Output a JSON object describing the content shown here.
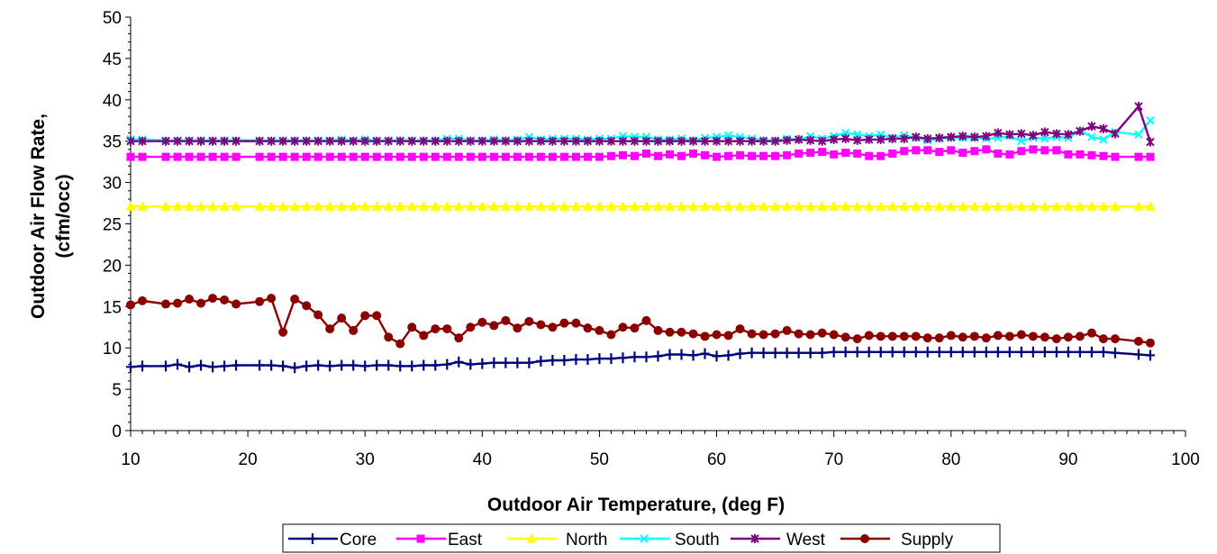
{
  "chart_data": {
    "type": "line",
    "title": "",
    "xlabel": "Outdoor Air Temperature, (deg F)",
    "ylabel_line1": "Outdoor Air Flow Rate,",
    "ylabel_line2": "(cfm/occ)",
    "xlim": [
      10,
      100
    ],
    "ylim": [
      0,
      50
    ],
    "xticks": [
      10,
      20,
      30,
      40,
      50,
      60,
      70,
      80,
      90,
      100
    ],
    "yticks": [
      0,
      5,
      10,
      15,
      20,
      25,
      30,
      35,
      40,
      45,
      50
    ],
    "grid": false,
    "legend_position": "bottom",
    "series": [
      {
        "name": "Core",
        "color": "#000080",
        "marker": "plus",
        "x": [
          10,
          11,
          13,
          14,
          15,
          16,
          17,
          18,
          19,
          21,
          22,
          23,
          24,
          25,
          26,
          27,
          28,
          29,
          30,
          31,
          32,
          33,
          34,
          35,
          36,
          37,
          38,
          39,
          40,
          41,
          42,
          43,
          44,
          45,
          46,
          47,
          48,
          49,
          50,
          51,
          52,
          53,
          54,
          55,
          56,
          57,
          58,
          59,
          60,
          61,
          62,
          63,
          64,
          65,
          66,
          67,
          68,
          69,
          70,
          71,
          72,
          73,
          74,
          75,
          76,
          77,
          78,
          79,
          80,
          81,
          82,
          83,
          84,
          85,
          86,
          87,
          88,
          89,
          90,
          91,
          92,
          93,
          94,
          96,
          97
        ],
        "y": [
          7.7,
          7.8,
          7.8,
          8.0,
          7.7,
          7.9,
          7.7,
          7.8,
          7.9,
          7.9,
          7.9,
          7.8,
          7.6,
          7.8,
          7.9,
          7.8,
          7.9,
          7.9,
          7.8,
          7.9,
          7.9,
          7.8,
          7.8,
          7.9,
          7.9,
          8.0,
          8.3,
          8.0,
          8.1,
          8.2,
          8.2,
          8.2,
          8.2,
          8.4,
          8.5,
          8.5,
          8.6,
          8.6,
          8.7,
          8.7,
          8.8,
          8.9,
          8.9,
          9.0,
          9.2,
          9.2,
          9.1,
          9.3,
          9.0,
          9.1,
          9.3,
          9.4,
          9.4,
          9.4,
          9.4,
          9.4,
          9.4,
          9.4,
          9.5,
          9.5,
          9.5,
          9.5,
          9.5,
          9.5,
          9.5,
          9.5,
          9.5,
          9.5,
          9.5,
          9.5,
          9.5,
          9.5,
          9.5,
          9.5,
          9.5,
          9.5,
          9.5,
          9.5,
          9.5,
          9.5,
          9.5,
          9.5,
          9.4,
          9.2,
          9.1
        ]
      },
      {
        "name": "East",
        "color": "#FF00FF",
        "marker": "square",
        "x": [
          10,
          11,
          13,
          14,
          15,
          16,
          17,
          18,
          19,
          21,
          22,
          23,
          24,
          25,
          26,
          27,
          28,
          29,
          30,
          31,
          32,
          33,
          34,
          35,
          36,
          37,
          38,
          39,
          40,
          41,
          42,
          43,
          44,
          45,
          46,
          47,
          48,
          49,
          50,
          51,
          52,
          53,
          54,
          55,
          56,
          57,
          58,
          59,
          60,
          61,
          62,
          63,
          64,
          65,
          66,
          67,
          68,
          69,
          70,
          71,
          72,
          73,
          74,
          75,
          76,
          77,
          78,
          79,
          80,
          81,
          82,
          83,
          84,
          85,
          86,
          87,
          88,
          89,
          90,
          91,
          92,
          93,
          94,
          96,
          97
        ],
        "y": [
          33.1,
          33.1,
          33.1,
          33.1,
          33.1,
          33.1,
          33.1,
          33.1,
          33.1,
          33.1,
          33.1,
          33.1,
          33.1,
          33.1,
          33.1,
          33.1,
          33.1,
          33.1,
          33.1,
          33.1,
          33.1,
          33.1,
          33.1,
          33.1,
          33.1,
          33.1,
          33.1,
          33.1,
          33.1,
          33.1,
          33.1,
          33.1,
          33.1,
          33.1,
          33.1,
          33.1,
          33.1,
          33.1,
          33.1,
          33.2,
          33.3,
          33.2,
          33.5,
          33.2,
          33.4,
          33.2,
          33.5,
          33.3,
          33.1,
          33.2,
          33.3,
          33.2,
          33.2,
          33.2,
          33.3,
          33.5,
          33.6,
          33.7,
          33.4,
          33.6,
          33.5,
          33.2,
          33.2,
          33.5,
          33.8,
          33.9,
          33.9,
          33.7,
          33.9,
          33.6,
          33.8,
          34.0,
          33.5,
          33.4,
          33.8,
          34.0,
          33.9,
          33.9,
          33.4,
          33.4,
          33.3,
          33.2,
          33.1,
          33.1,
          33.1
        ]
      },
      {
        "name": "North",
        "color": "#FFFF00",
        "marker": "triangle",
        "x": [
          10,
          11,
          13,
          14,
          15,
          16,
          17,
          18,
          19,
          21,
          22,
          23,
          24,
          25,
          26,
          27,
          28,
          29,
          30,
          31,
          32,
          33,
          34,
          35,
          36,
          37,
          38,
          39,
          40,
          41,
          42,
          43,
          44,
          45,
          46,
          47,
          48,
          49,
          50,
          51,
          52,
          53,
          54,
          55,
          56,
          57,
          58,
          59,
          60,
          61,
          62,
          63,
          64,
          65,
          66,
          67,
          68,
          69,
          70,
          71,
          72,
          73,
          74,
          75,
          76,
          77,
          78,
          79,
          80,
          81,
          82,
          83,
          84,
          85,
          86,
          87,
          88,
          89,
          90,
          91,
          92,
          93,
          94,
          96,
          97
        ],
        "y": [
          27.1,
          27.1,
          27.1,
          27.1,
          27.1,
          27.1,
          27.1,
          27.1,
          27.1,
          27.1,
          27.1,
          27.1,
          27.1,
          27.1,
          27.1,
          27.1,
          27.1,
          27.1,
          27.1,
          27.1,
          27.1,
          27.1,
          27.1,
          27.1,
          27.1,
          27.1,
          27.1,
          27.1,
          27.1,
          27.1,
          27.1,
          27.1,
          27.1,
          27.1,
          27.1,
          27.1,
          27.1,
          27.1,
          27.1,
          27.1,
          27.1,
          27.1,
          27.1,
          27.1,
          27.1,
          27.1,
          27.1,
          27.1,
          27.1,
          27.1,
          27.1,
          27.1,
          27.1,
          27.1,
          27.1,
          27.1,
          27.1,
          27.1,
          27.1,
          27.1,
          27.1,
          27.1,
          27.1,
          27.1,
          27.1,
          27.1,
          27.1,
          27.1,
          27.1,
          27.1,
          27.1,
          27.1,
          27.1,
          27.1,
          27.1,
          27.1,
          27.1,
          27.1,
          27.1,
          27.1,
          27.1,
          27.1,
          27.1,
          27.1,
          27.1
        ]
      },
      {
        "name": "South",
        "color": "#00FFFF",
        "marker": "x",
        "x": [
          10,
          11,
          13,
          14,
          15,
          16,
          17,
          18,
          19,
          21,
          22,
          23,
          24,
          25,
          26,
          27,
          28,
          29,
          30,
          31,
          32,
          33,
          34,
          35,
          36,
          37,
          38,
          39,
          40,
          41,
          42,
          43,
          44,
          45,
          46,
          47,
          48,
          49,
          50,
          51,
          52,
          53,
          54,
          55,
          56,
          57,
          58,
          59,
          60,
          61,
          62,
          63,
          64,
          65,
          66,
          67,
          68,
          69,
          70,
          71,
          72,
          73,
          74,
          75,
          76,
          77,
          78,
          79,
          80,
          81,
          82,
          83,
          84,
          85,
          86,
          87,
          88,
          89,
          90,
          91,
          92,
          93,
          94,
          96,
          97
        ],
        "y": [
          35.2,
          35.2,
          35.1,
          35.1,
          35.1,
          35.1,
          35.1,
          35.1,
          35.1,
          35.1,
          35.1,
          35.1,
          35.1,
          35.1,
          35.1,
          35.1,
          35.2,
          35.1,
          35.2,
          35.1,
          35.1,
          35.1,
          35.1,
          35.1,
          35.1,
          35.3,
          35.3,
          35.1,
          35.1,
          35.2,
          35.1,
          35.2,
          35.5,
          35.2,
          35.3,
          35.3,
          35.3,
          35.2,
          35.3,
          35.3,
          35.6,
          35.5,
          35.5,
          35.2,
          35.2,
          35.3,
          35.1,
          35.4,
          35.5,
          35.7,
          35.5,
          35.3,
          35.1,
          35.1,
          35.3,
          35.2,
          35.6,
          35.3,
          35.6,
          36.0,
          35.8,
          35.6,
          35.8,
          35.4,
          35.7,
          35.4,
          35.1,
          35.3,
          35.4,
          35.4,
          35.4,
          35.3,
          35.4,
          35.6,
          35.0,
          35.4,
          35.3,
          35.5,
          35.4,
          36.3,
          35.5,
          35.2,
          36.1,
          35.8,
          37.5
        ]
      },
      {
        "name": "West",
        "color": "#800080",
        "marker": "star",
        "x": [
          10,
          11,
          13,
          14,
          15,
          16,
          17,
          18,
          19,
          21,
          22,
          23,
          24,
          25,
          26,
          27,
          28,
          29,
          30,
          31,
          32,
          33,
          34,
          35,
          36,
          37,
          38,
          39,
          40,
          41,
          42,
          43,
          44,
          45,
          46,
          47,
          48,
          49,
          50,
          51,
          52,
          53,
          54,
          55,
          56,
          57,
          58,
          59,
          60,
          61,
          62,
          63,
          64,
          65,
          66,
          67,
          68,
          69,
          70,
          71,
          72,
          73,
          74,
          75,
          76,
          77,
          78,
          79,
          80,
          81,
          82,
          83,
          84,
          85,
          86,
          87,
          88,
          89,
          90,
          91,
          92,
          93,
          94,
          96,
          97
        ],
        "y": [
          35.0,
          35.0,
          35.0,
          35.0,
          35.0,
          35.0,
          35.0,
          35.0,
          35.0,
          35.0,
          35.0,
          35.0,
          35.0,
          35.0,
          35.0,
          35.0,
          35.0,
          35.0,
          35.0,
          35.0,
          35.0,
          35.0,
          35.0,
          35.0,
          35.0,
          35.0,
          35.0,
          35.0,
          35.0,
          35.0,
          35.0,
          35.0,
          35.0,
          35.0,
          35.0,
          35.0,
          35.0,
          35.0,
          35.0,
          35.0,
          35.0,
          35.0,
          35.0,
          35.0,
          35.0,
          35.0,
          35.0,
          35.0,
          35.0,
          35.0,
          35.0,
          35.0,
          35.0,
          35.0,
          35.1,
          35.2,
          35.1,
          35.0,
          35.2,
          35.3,
          35.1,
          35.2,
          35.2,
          35.3,
          35.3,
          35.5,
          35.3,
          35.4,
          35.5,
          35.6,
          35.5,
          35.6,
          36.0,
          35.8,
          35.9,
          35.7,
          36.1,
          35.9,
          35.8,
          36.2,
          36.8,
          36.5,
          35.9,
          39.2,
          34.9
        ]
      },
      {
        "name": "Supply",
        "color": "#8B0000",
        "marker": "circle",
        "x": [
          10,
          11,
          13,
          14,
          15,
          16,
          17,
          18,
          19,
          21,
          22,
          23,
          24,
          25,
          26,
          27,
          28,
          29,
          30,
          31,
          32,
          33,
          34,
          35,
          36,
          37,
          38,
          39,
          40,
          41,
          42,
          43,
          44,
          45,
          46,
          47,
          48,
          49,
          50,
          51,
          52,
          53,
          54,
          55,
          56,
          57,
          58,
          59,
          60,
          61,
          62,
          63,
          64,
          65,
          66,
          67,
          68,
          69,
          70,
          71,
          72,
          73,
          74,
          75,
          76,
          77,
          78,
          79,
          80,
          81,
          82,
          83,
          84,
          85,
          86,
          87,
          88,
          89,
          90,
          91,
          92,
          93,
          94,
          96,
          97
        ],
        "y": [
          15.2,
          15.7,
          15.3,
          15.4,
          15.9,
          15.4,
          16.0,
          15.8,
          15.3,
          15.6,
          16.0,
          11.9,
          15.9,
          15.1,
          14.0,
          12.3,
          13.6,
          12.1,
          13.9,
          13.9,
          11.3,
          10.5,
          12.5,
          11.5,
          12.3,
          12.3,
          11.2,
          12.5,
          13.1,
          12.7,
          13.3,
          12.4,
          13.2,
          12.8,
          12.5,
          13.0,
          13.0,
          12.4,
          12.1,
          11.6,
          12.5,
          12.4,
          13.3,
          12.1,
          11.9,
          11.9,
          11.7,
          11.4,
          11.6,
          11.5,
          12.3,
          11.7,
          11.6,
          11.7,
          12.1,
          11.7,
          11.6,
          11.8,
          11.6,
          11.3,
          11.1,
          11.5,
          11.4,
          11.4,
          11.4,
          11.4,
          11.2,
          11.2,
          11.5,
          11.3,
          11.4,
          11.2,
          11.5,
          11.4,
          11.6,
          11.4,
          11.3,
          11.1,
          11.3,
          11.4,
          11.8,
          11.1,
          11.1,
          10.8,
          10.6
        ]
      }
    ]
  }
}
